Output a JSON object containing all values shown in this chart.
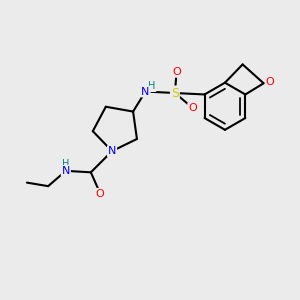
{
  "bg_color": "#ebebeb",
  "bond_color": "#000000",
  "bond_width": 1.5,
  "atom_colors": {
    "N": "#0000ff",
    "O": "#ff0000",
    "S": "#cccc00",
    "NH_color": "#008080",
    "C": "#000000"
  },
  "figsize": [
    3.0,
    3.0
  ],
  "dpi": 100
}
